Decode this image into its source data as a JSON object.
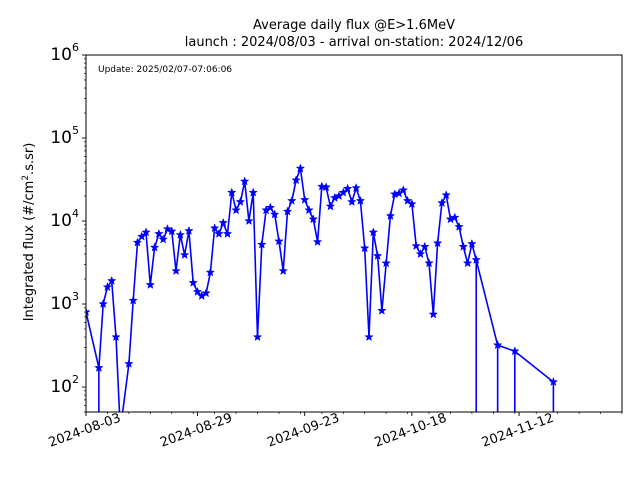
{
  "chart_data": {
    "type": "line",
    "title_lines": [
      "Average daily flux @E>1.6MeV",
      "launch : 2024/08/03 - arrival on-station: 2024/12/06"
    ],
    "annotation": "Update: 2025/02/07-07:06:06",
    "xlabel": "",
    "ylabel_text": "Integrated flux (#/cm",
    "ylabel_sup": "2",
    "ylabel_tail": ".s.sr)",
    "yscale": "log",
    "ylim": [
      50,
      1000000
    ],
    "xlim": [
      "2024-08-03",
      "2024-12-06"
    ],
    "x_ticks": [
      "2024-08-03",
      "2024-08-29",
      "2024-09-23",
      "2024-10-18",
      "2024-11-12"
    ],
    "y_ticks": [
      {
        "base": "10",
        "exp": "2",
        "value": 100
      },
      {
        "base": "10",
        "exp": "3",
        "value": 1000
      },
      {
        "base": "10",
        "exp": "4",
        "value": 10000
      },
      {
        "base": "10",
        "exp": "5",
        "value": 100000
      },
      {
        "base": "10",
        "exp": "6",
        "value": 1000000
      }
    ],
    "color": "#0000ff",
    "marker": "star",
    "grid": false,
    "series": [
      {
        "x": [
          "2024-08-03",
          "2024-08-06",
          "2024-08-07",
          "2024-08-08",
          "2024-08-09",
          "2024-08-10",
          "2024-08-11",
          "2024-08-13",
          "2024-08-14",
          "2024-08-15",
          "2024-08-16",
          "2024-08-17",
          "2024-08-18",
          "2024-08-19",
          "2024-08-20",
          "2024-08-21",
          "2024-08-22",
          "2024-08-23",
          "2024-08-24",
          "2024-08-25",
          "2024-08-26",
          "2024-08-27",
          "2024-08-28",
          "2024-08-29",
          "2024-08-30",
          "2024-08-31",
          "2024-09-01",
          "2024-09-02",
          "2024-09-03",
          "2024-09-04",
          "2024-09-05",
          "2024-09-06",
          "2024-09-07",
          "2024-09-08",
          "2024-09-09",
          "2024-09-10",
          "2024-09-11",
          "2024-09-12",
          "2024-09-13",
          "2024-09-14",
          "2024-09-15",
          "2024-09-16",
          "2024-09-17",
          "2024-09-18",
          "2024-09-19",
          "2024-09-20",
          "2024-09-21",
          "2024-09-22",
          "2024-09-23",
          "2024-09-24",
          "2024-09-25",
          "2024-09-26",
          "2024-09-27",
          "2024-09-28",
          "2024-09-29",
          "2024-09-30",
          "2024-10-01",
          "2024-10-02",
          "2024-10-03",
          "2024-10-04",
          "2024-10-05",
          "2024-10-06",
          "2024-10-07",
          "2024-10-08",
          "2024-10-09",
          "2024-10-10",
          "2024-10-11",
          "2024-10-12",
          "2024-10-13",
          "2024-10-14",
          "2024-10-15",
          "2024-10-16",
          "2024-10-17",
          "2024-10-18",
          "2024-10-19",
          "2024-10-20",
          "2024-10-21",
          "2024-10-22",
          "2024-10-23",
          "2024-10-24",
          "2024-10-25",
          "2024-10-26",
          "2024-10-27",
          "2024-10-28",
          "2024-10-29",
          "2024-10-30",
          "2024-10-31",
          "2024-11-01",
          "2024-11-02",
          "2024-11-07",
          "2024-11-11",
          "2024-11-20"
        ],
        "y": [
          800,
          170,
          1000,
          1600,
          1900,
          400,
          30,
          190,
          1100,
          5500,
          6500,
          7300,
          1700,
          4800,
          7000,
          6000,
          8000,
          7500,
          2500,
          6800,
          3900,
          7600,
          1800,
          1400,
          1250,
          1350,
          2400,
          8200,
          7000,
          9500,
          7000,
          22000,
          13500,
          17000,
          30000,
          10000,
          22000,
          400,
          5200,
          13500,
          14500,
          12000,
          5700,
          2500,
          13000,
          17500,
          31000,
          43000,
          18000,
          13500,
          10500,
          5600,
          26000,
          25500,
          15000,
          19000,
          20000,
          22000,
          24500,
          17000,
          25000,
          17500,
          4700,
          400,
          7300,
          3800,
          830,
          3100,
          11500,
          21000,
          21500,
          23500,
          17500,
          16000,
          5000,
          4000,
          4900,
          3100,
          750,
          5400,
          16500,
          20500,
          10500,
          11000,
          8500,
          4900,
          3100,
          5300,
          3400,
          320,
          270,
          115
        ]
      }
    ],
    "drops": [
      "2024-08-06",
      "2024-08-12",
      "2024-11-02",
      "2024-11-07",
      "2024-11-11",
      "2024-11-20"
    ]
  }
}
